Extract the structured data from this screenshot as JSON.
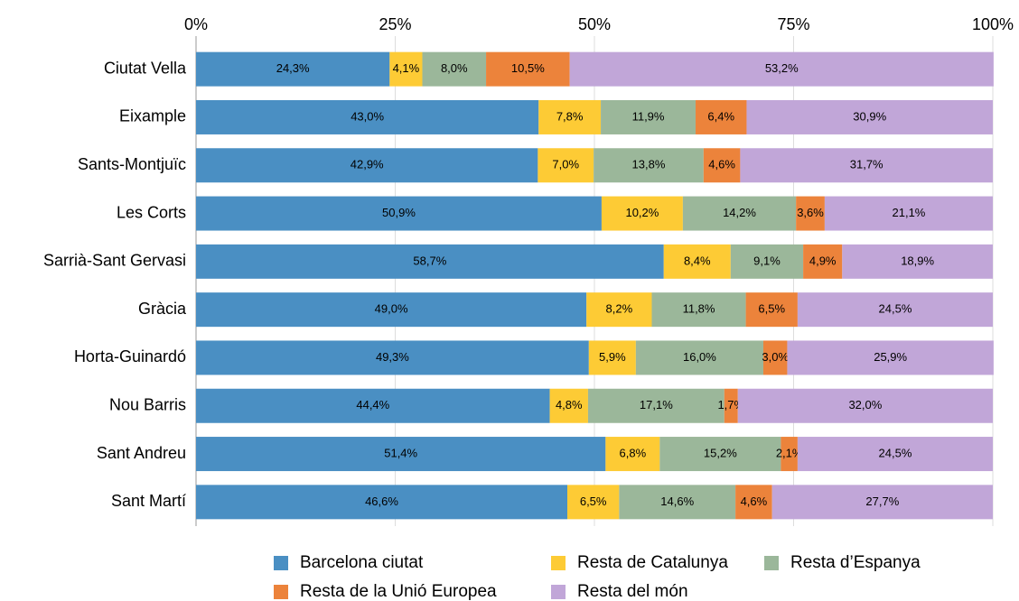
{
  "chart_data": {
    "type": "stacked_barh",
    "categories": [
      "Ciutat Vella",
      "Eixample",
      "Sants-Montjuïc",
      "Les Corts",
      "Sarrià-Sant Gervasi",
      "Gràcia",
      "Horta-Guinardó",
      "Nou Barris",
      "Sant Andreu",
      "Sant Martí"
    ],
    "series": [
      {
        "name": "Barcelona ciutat",
        "color": "#4a8fc3",
        "values": [
          24.3,
          43.0,
          42.9,
          50.9,
          58.7,
          49.0,
          49.3,
          44.4,
          51.4,
          46.6
        ],
        "value_labels": [
          "24,3%",
          "43,0%",
          "42,9%",
          "50,9%",
          "58,7%",
          "49,0%",
          "49,3%",
          "44,4%",
          "51,4%",
          "46,6%"
        ]
      },
      {
        "name": "Resta de Catalunya",
        "color": "#fdcb35",
        "values": [
          4.1,
          7.8,
          7.0,
          10.2,
          8.4,
          8.2,
          5.9,
          4.8,
          6.8,
          6.5
        ],
        "value_labels": [
          "4,1%",
          "7,8%",
          "7,0%",
          "10,2%",
          "8,4%",
          "8,2%",
          "5,9%",
          "4,8%",
          "6,8%",
          "6,5%"
        ]
      },
      {
        "name": "Resta d’Espanya",
        "color": "#9bb79a",
        "values": [
          8.0,
          11.9,
          13.8,
          14.2,
          9.1,
          11.8,
          16.0,
          17.1,
          15.2,
          14.6
        ],
        "value_labels": [
          "8,0%",
          "11,9%",
          "13,8%",
          "14,2%",
          "9,1%",
          "11,8%",
          "16,0%",
          "17,1%",
          "15,2%",
          "14,6%"
        ]
      },
      {
        "name": "Resta de la Unió Europea",
        "color": "#ec833b",
        "values": [
          10.5,
          6.4,
          4.6,
          3.6,
          4.9,
          6.5,
          3.0,
          1.7,
          2.1,
          4.6
        ],
        "value_labels": [
          "10,5%",
          "6,4%",
          "4,6%",
          "3,6%",
          "4,9%",
          "6,5%",
          "3,0%",
          "1,7%",
          "2,1%",
          "4,6%"
        ]
      },
      {
        "name": "Resta del món",
        "color": "#c1a6d8",
        "values": [
          53.2,
          30.9,
          31.7,
          21.1,
          18.9,
          24.5,
          25.9,
          32.0,
          24.5,
          27.7
        ],
        "value_labels": [
          "53,2%",
          "30,9%",
          "31,7%",
          "21,1%",
          "18,9%",
          "24,5%",
          "25,9%",
          "32,0%",
          "24,5%",
          "27,7%"
        ]
      }
    ],
    "xlim": [
      0,
      100
    ],
    "xticks": [
      {
        "value": 0,
        "label": "0%"
      },
      {
        "value": 25,
        "label": "25%"
      },
      {
        "value": 50,
        "label": "50%"
      },
      {
        "value": 75,
        "label": "75%"
      },
      {
        "value": 100,
        "label": "100%"
      }
    ],
    "grid": true,
    "legend": "bottom"
  }
}
